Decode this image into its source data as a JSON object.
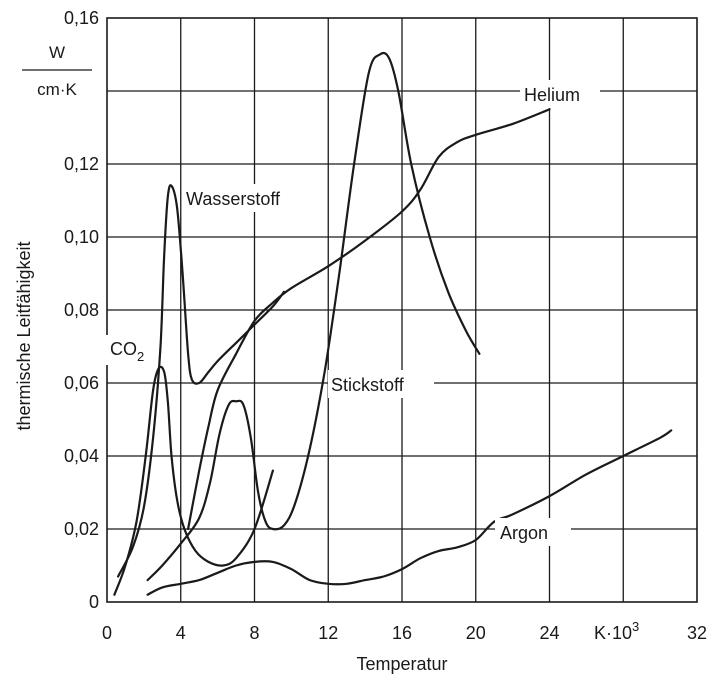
{
  "chart_data": {
    "type": "line",
    "xlabel": "Temperatur",
    "ylabel": "thermische Leitfähigkeit",
    "y_unit_numerator": "W",
    "y_unit_denominator": "cm·K",
    "x_unit_label": "K·10",
    "x_unit_exponent": "3",
    "xlim": [
      0,
      32
    ],
    "ylim": [
      0,
      0.16
    ],
    "grid": true,
    "x_ticks": [
      {
        "value": 0,
        "label": "0"
      },
      {
        "value": 4,
        "label": "4"
      },
      {
        "value": 8,
        "label": "8"
      },
      {
        "value": 12,
        "label": "12"
      },
      {
        "value": 16,
        "label": "16"
      },
      {
        "value": 20,
        "label": "20"
      },
      {
        "value": 24,
        "label": "24"
      },
      {
        "value": 32,
        "label": "32"
      }
    ],
    "y_ticks": [
      {
        "value": 0,
        "label": "0"
      },
      {
        "value": 0.02,
        "label": "0,02"
      },
      {
        "value": 0.04,
        "label": "0,04"
      },
      {
        "value": 0.06,
        "label": "0,06"
      },
      {
        "value": 0.08,
        "label": "0,08"
      },
      {
        "value": 0.1,
        "label": "0,10"
      },
      {
        "value": 0.12,
        "label": "0,12"
      },
      {
        "value": 0.16,
        "label": "0,16"
      }
    ],
    "series": [
      {
        "name": "Wasserstoff",
        "points": [
          [
            0.6,
            0.007
          ],
          [
            1.4,
            0.015
          ],
          [
            2.0,
            0.026
          ],
          [
            2.5,
            0.045
          ],
          [
            2.9,
            0.07
          ],
          [
            3.1,
            0.095
          ],
          [
            3.3,
            0.111
          ],
          [
            3.5,
            0.114
          ],
          [
            3.8,
            0.108
          ],
          [
            4.1,
            0.09
          ],
          [
            4.4,
            0.068
          ],
          [
            4.6,
            0.061
          ],
          [
            5.0,
            0.06
          ],
          [
            5.5,
            0.063
          ],
          [
            6.0,
            0.066
          ],
          [
            7.0,
            0.071
          ],
          [
            8.0,
            0.076
          ],
          [
            9.0,
            0.081
          ],
          [
            9.6,
            0.085
          ]
        ]
      },
      {
        "name": "CO₂",
        "points": [
          [
            0.4,
            0.002
          ],
          [
            1.0,
            0.01
          ],
          [
            1.6,
            0.022
          ],
          [
            2.1,
            0.04
          ],
          [
            2.5,
            0.058
          ],
          [
            2.8,
            0.064
          ],
          [
            3.1,
            0.063
          ],
          [
            3.3,
            0.055
          ],
          [
            3.5,
            0.04
          ],
          [
            3.8,
            0.028
          ],
          [
            4.2,
            0.02
          ],
          [
            4.8,
            0.014
          ],
          [
            5.5,
            0.011
          ],
          [
            6.3,
            0.01
          ],
          [
            7.0,
            0.012
          ],
          [
            8.0,
            0.02
          ],
          [
            9.0,
            0.036
          ]
        ]
      },
      {
        "name": "Stickstoff",
        "points": [
          [
            2.2,
            0.006
          ],
          [
            3.0,
            0.01
          ],
          [
            4.0,
            0.016
          ],
          [
            5.0,
            0.023
          ],
          [
            5.6,
            0.033
          ],
          [
            6.1,
            0.046
          ],
          [
            6.6,
            0.054
          ],
          [
            7.0,
            0.055
          ],
          [
            7.4,
            0.054
          ],
          [
            7.8,
            0.045
          ],
          [
            8.2,
            0.03
          ],
          [
            8.6,
            0.022
          ],
          [
            9.0,
            0.02
          ],
          [
            9.6,
            0.021
          ],
          [
            10.2,
            0.027
          ],
          [
            11.0,
            0.042
          ],
          [
            11.8,
            0.063
          ],
          [
            12.6,
            0.09
          ],
          [
            13.4,
            0.12
          ],
          [
            14.2,
            0.145
          ],
          [
            14.8,
            0.15
          ],
          [
            15.3,
            0.149
          ],
          [
            15.8,
            0.14
          ],
          [
            16.5,
            0.12
          ],
          [
            17.5,
            0.1
          ],
          [
            18.5,
            0.085
          ],
          [
            19.5,
            0.074
          ],
          [
            20.2,
            0.068
          ]
        ]
      },
      {
        "name": "Helium",
        "points": [
          [
            4.4,
            0.02
          ],
          [
            5.0,
            0.036
          ],
          [
            5.5,
            0.048
          ],
          [
            6.0,
            0.058
          ],
          [
            7.0,
            0.068
          ],
          [
            8.0,
            0.077
          ],
          [
            9.0,
            0.082
          ],
          [
            10.0,
            0.086
          ],
          [
            12.0,
            0.092
          ],
          [
            14.0,
            0.099
          ],
          [
            16.0,
            0.107
          ],
          [
            17.0,
            0.113
          ],
          [
            18.0,
            0.122
          ],
          [
            19.0,
            0.126
          ],
          [
            20.0,
            0.128
          ],
          [
            22.0,
            0.131
          ],
          [
            24.0,
            0.135
          ]
        ]
      },
      {
        "name": "Argon",
        "points": [
          [
            2.2,
            0.002
          ],
          [
            3.0,
            0.004
          ],
          [
            4.0,
            0.005
          ],
          [
            5.0,
            0.006
          ],
          [
            6.0,
            0.008
          ],
          [
            7.0,
            0.01
          ],
          [
            8.0,
            0.011
          ],
          [
            9.0,
            0.011
          ],
          [
            10.0,
            0.009
          ],
          [
            11.0,
            0.006
          ],
          [
            12.0,
            0.005
          ],
          [
            13.0,
            0.005
          ],
          [
            14.0,
            0.006
          ],
          [
            15.0,
            0.007
          ],
          [
            16.0,
            0.009
          ],
          [
            17.0,
            0.012
          ],
          [
            18.0,
            0.014
          ],
          [
            19.0,
            0.015
          ],
          [
            20.0,
            0.017
          ],
          [
            21.0,
            0.022
          ],
          [
            22.0,
            0.024
          ],
          [
            24.0,
            0.029
          ],
          [
            26.0,
            0.035
          ],
          [
            28.0,
            0.04
          ],
          [
            30.0,
            0.045
          ],
          [
            30.6,
            0.047
          ]
        ]
      }
    ]
  },
  "labels": {
    "wasserstoff": "Wasserstoff",
    "co2_main": "CO",
    "co2_sub": "2",
    "stickstoff": "Stickstoff",
    "helium": "Helium",
    "argon": "Argon"
  }
}
